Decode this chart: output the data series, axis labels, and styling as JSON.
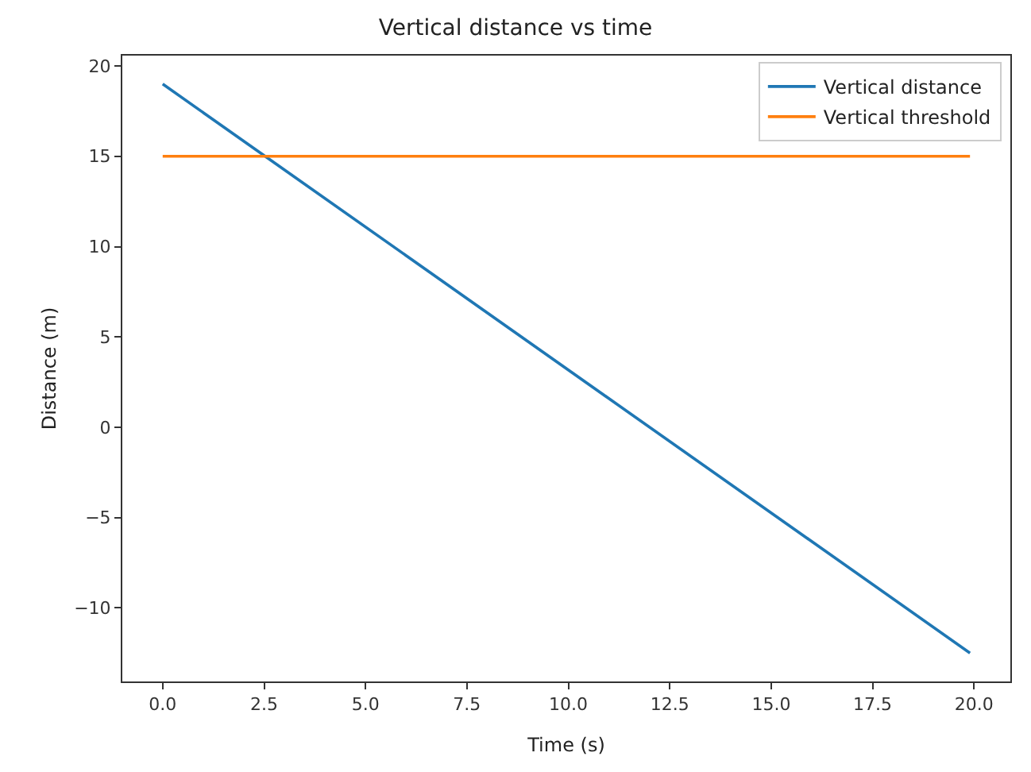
{
  "chart_data": {
    "type": "line",
    "title": "Vertical distance vs time",
    "xlabel": "Time (s)",
    "ylabel": "Distance (m)",
    "x": [
      0,
      19.9
    ],
    "series": [
      {
        "name": "Vertical distance",
        "color": "#1f77b4",
        "values": [
          19,
          -12.5
        ]
      },
      {
        "name": "Vertical threshold",
        "color": "#ff7f0e",
        "values": [
          15,
          15
        ]
      }
    ],
    "xlim": [
      -0.995,
      20.895
    ],
    "ylim": [
      -14.075,
      20.575
    ],
    "xticks": [
      {
        "value": 0,
        "label": "0.0"
      },
      {
        "value": 2.5,
        "label": "2.5"
      },
      {
        "value": 5,
        "label": "5.0"
      },
      {
        "value": 7.5,
        "label": "7.5"
      },
      {
        "value": 10,
        "label": "10.0"
      },
      {
        "value": 12.5,
        "label": "12.5"
      },
      {
        "value": 15,
        "label": "15.0"
      },
      {
        "value": 17.5,
        "label": "17.5"
      },
      {
        "value": 20,
        "label": "20.0"
      }
    ],
    "yticks": [
      {
        "value": -10,
        "label": "−10"
      },
      {
        "value": -5,
        "label": "−5"
      },
      0,
      5,
      10,
      15,
      20
    ],
    "legend": "top right",
    "marker": "none",
    "line_style": "solid"
  }
}
